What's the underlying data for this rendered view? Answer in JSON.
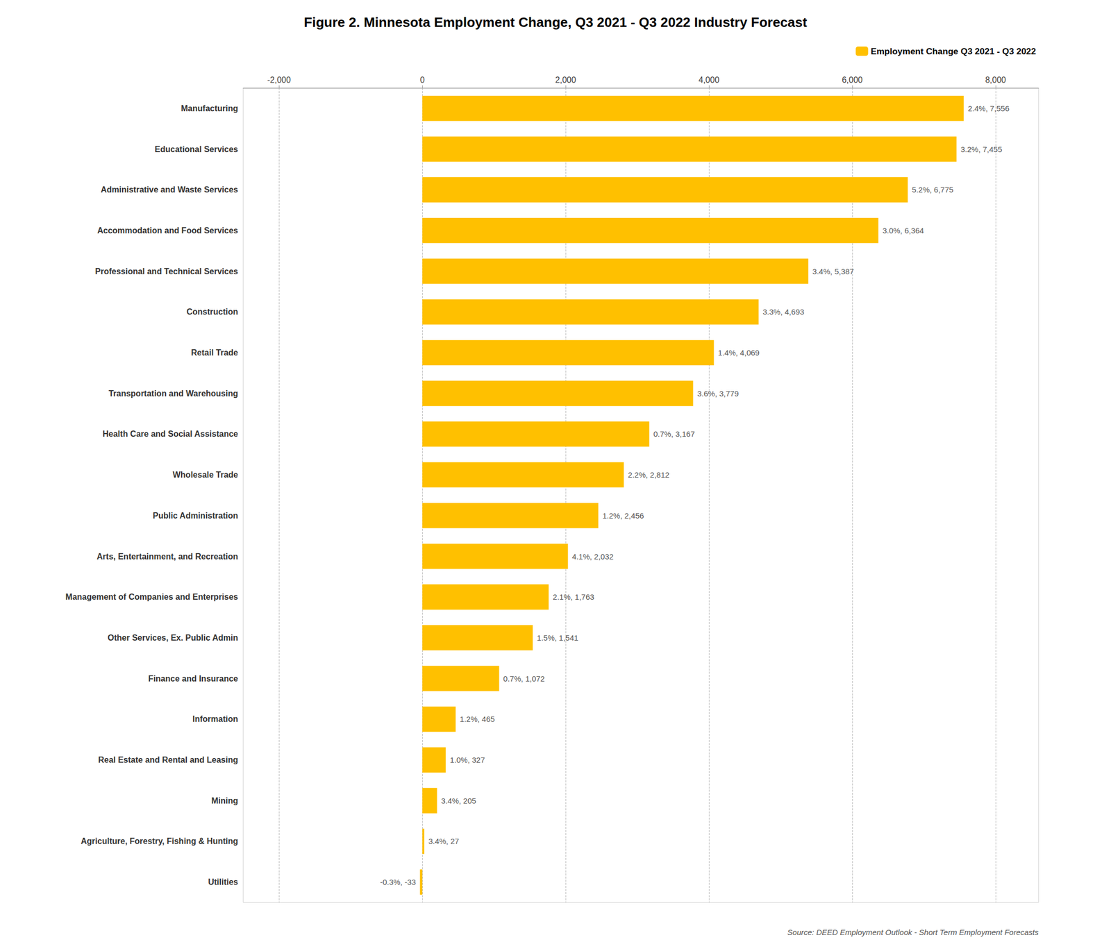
{
  "chart_data": {
    "type": "bar",
    "orientation": "horizontal",
    "title": "Figure 2. Minnesota Employment Change, Q3 2021 - Q3 2022 Industry Forecast",
    "annotations": [
      "Source: DEED Employment Outlook - Short Term Employment Forecasts"
    ],
    "categories": [
      "Manufacturing",
      "Educational Services",
      "Administrative and Waste Services",
      "Accommodation and Food Services",
      "Professional and Technical Services",
      "Construction",
      "Retail Trade",
      "Transportation and Warehousing",
      "Health Care and Social Assistance",
      "Wholesale Trade",
      "Public Administration",
      "Arts, Entertainment, and Recreation",
      "Management of Companies and Enterprises",
      "Other Services, Ex. Public Admin",
      "Finance and Insurance",
      "Information",
      "Real Estate and Rental and Leasing",
      "Mining",
      "Agriculture, Forestry, Fishing & Hunting",
      "Utilities"
    ],
    "series": [
      {
        "name": "Employment Change Q3 2021 - Q3 2022",
        "color": "#FFC000",
        "values": [
          7556,
          7455,
          6775,
          6364,
          5387,
          4693,
          4069,
          3779,
          3167,
          2812,
          2456,
          2032,
          1763,
          1541,
          1072,
          465,
          327,
          205,
          27,
          -33
        ],
        "value_labels": [
          "2.4%, 7,556",
          "3.2%, 7,455",
          "5.2%, 6,775",
          "3.0%, 6,364",
          "3.4%, 5,387",
          "3.3%, 4,693",
          "1.4%, 4,069",
          "3.6%, 3,779",
          "0.7%, 3,167",
          "2.2%, 2,812",
          "1.2%, 2,456",
          "4.1%, 2,032",
          "2.1%, 1,763",
          "1.5%, 1,541",
          "0.7%, 1,072",
          "1.2%, 465",
          "1.0%, 327",
          "3.4%, 205",
          "3.4%, 27",
          "-0.3%, -33"
        ]
      }
    ],
    "data_labels": true,
    "xlim": [
      -2500,
      8600
    ],
    "xticks": [
      {
        "value": -2000,
        "label": "-2,000"
      },
      0,
      {
        "value": 2000,
        "label": "2,000"
      },
      {
        "value": 4000,
        "label": "4,000"
      },
      {
        "value": 6000,
        "label": "6,000"
      },
      {
        "value": 8000,
        "label": "8,000"
      }
    ],
    "grid": true,
    "legend": "top right"
  }
}
